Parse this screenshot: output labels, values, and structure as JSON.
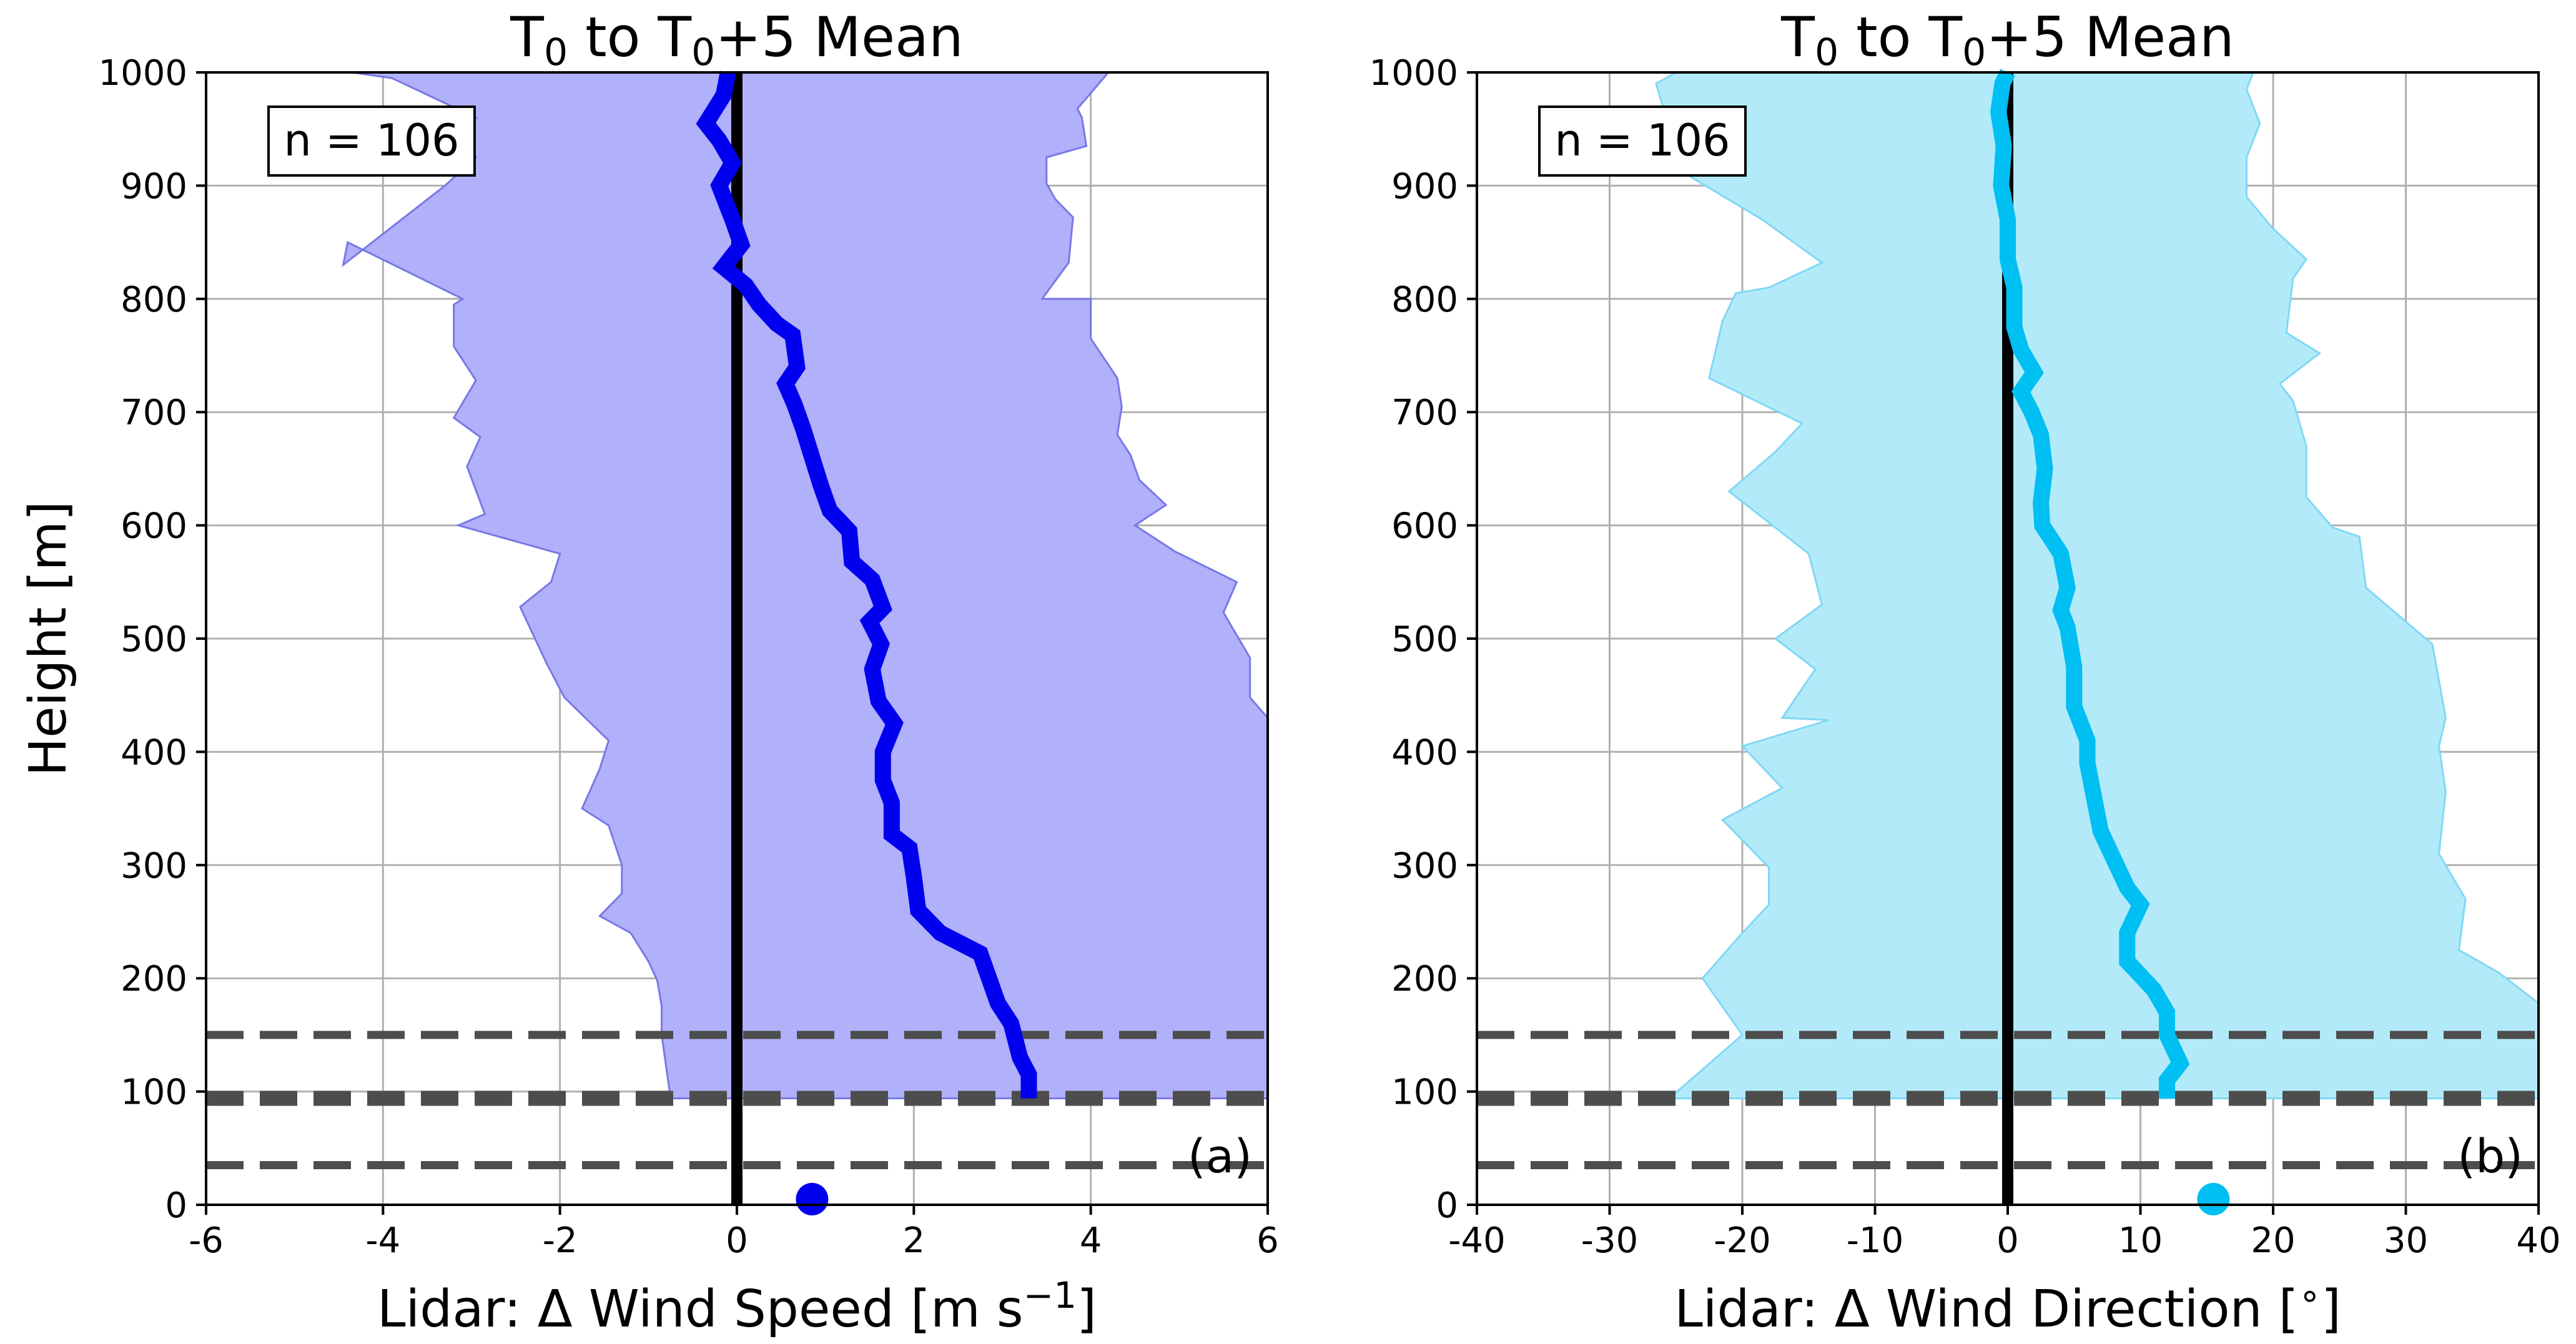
{
  "chart_data": [
    {
      "type": "line",
      "title": "T0 to T0+5 Mean",
      "title_parts": {
        "a": "T",
        "b": "0",
        "c": " to T",
        "d": "0",
        "e": "+5 Mean"
      },
      "xlabel": "Lidar: Δ Wind Speed [m s",
      "xlabel_sup": "−1",
      "xlabel_end": "]",
      "ylabel": "Height [m]",
      "xlim": [
        -6,
        6
      ],
      "ylim": [
        0,
        1000
      ],
      "xticks": [
        -6,
        -4,
        -2,
        0,
        2,
        4,
        6
      ],
      "xtick_labels": [
        "-6",
        "-4",
        "-2",
        "0",
        "2",
        "4",
        "6"
      ],
      "yticks": [
        0,
        100,
        200,
        300,
        400,
        500,
        600,
        700,
        800,
        900,
        1000
      ],
      "ytick_labels": [
        "0",
        "100",
        "200",
        "300",
        "400",
        "500",
        "600",
        "700",
        "800",
        "900",
        "1000"
      ],
      "grid": true,
      "annotation": "n = 106",
      "panel_label": "(a)",
      "colors": {
        "mean": "#0000ee",
        "band": "#b0b0fb",
        "band_edge": "#7878e6",
        "zero": "#000000",
        "dashed": "#4d4d4d"
      },
      "series": [
        {
          "role": "mean",
          "points": [
            [
              3.3,
              94
            ],
            [
              3.3,
              115
            ],
            [
              3.2,
              130
            ],
            [
              3.1,
              160
            ],
            [
              2.95,
              178
            ],
            [
              2.85,
              200
            ],
            [
              2.75,
              222
            ],
            [
              2.3,
              240
            ],
            [
              2.05,
              260
            ],
            [
              2.0,
              290
            ],
            [
              1.95,
              315
            ],
            [
              1.75,
              327
            ],
            [
              1.75,
              355
            ],
            [
              1.65,
              375
            ],
            [
              1.65,
              400
            ],
            [
              1.78,
              425
            ],
            [
              1.6,
              445
            ],
            [
              1.53,
              473
            ],
            [
              1.63,
              495
            ],
            [
              1.5,
              515
            ],
            [
              1.65,
              527
            ],
            [
              1.53,
              552
            ],
            [
              1.3,
              568
            ],
            [
              1.27,
              595
            ],
            [
              1.05,
              613
            ],
            [
              0.95,
              635
            ],
            [
              0.85,
              660
            ],
            [
              0.75,
              685
            ],
            [
              0.65,
              707
            ],
            [
              0.55,
              725
            ],
            [
              0.68,
              740
            ],
            [
              0.63,
              768
            ],
            [
              0.45,
              778
            ],
            [
              0.25,
              795
            ],
            [
              0.1,
              812
            ],
            [
              -0.15,
              828
            ],
            [
              0.05,
              848
            ],
            [
              -0.05,
              870
            ],
            [
              -0.2,
              900
            ],
            [
              -0.05,
              920
            ],
            [
              -0.2,
              940
            ],
            [
              -0.35,
              955
            ],
            [
              -0.15,
              980
            ],
            [
              -0.1,
              1000
            ]
          ]
        },
        {
          "role": "lower_bound",
          "points": [
            [
              -0.75,
              94
            ],
            [
              -0.85,
              150
            ],
            [
              -0.85,
              175
            ],
            [
              -0.9,
              198
            ],
            [
              -1.0,
              215
            ],
            [
              -1.2,
              240
            ],
            [
              -1.55,
              255
            ],
            [
              -1.3,
              275
            ],
            [
              -1.3,
              300
            ],
            [
              -1.45,
              335
            ],
            [
              -1.75,
              350
            ],
            [
              -1.55,
              385
            ],
            [
              -1.45,
              410
            ],
            [
              -1.95,
              448
            ],
            [
              -2.15,
              478
            ],
            [
              -2.45,
              528
            ],
            [
              -2.1,
              550
            ],
            [
              -2.0,
              575
            ],
            [
              -3.15,
              600
            ],
            [
              -2.85,
              610
            ],
            [
              -3.05,
              652
            ],
            [
              -2.9,
              678
            ],
            [
              -3.2,
              695
            ],
            [
              -2.95,
              728
            ],
            [
              -3.2,
              758
            ],
            [
              -3.2,
              795
            ],
            [
              -3.1,
              800
            ],
            [
              -4.4,
              850
            ],
            [
              -4.45,
              830
            ],
            [
              -3.3,
              900
            ],
            [
              -2.95,
              925
            ],
            [
              -3.2,
              955
            ],
            [
              -2.95,
              960
            ],
            [
              -3.9,
              995
            ],
            [
              -4.35,
              1000
            ]
          ]
        },
        {
          "role": "upper_bound",
          "points": [
            [
              6,
              94
            ],
            [
              6,
              430
            ],
            [
              5.8,
              448
            ],
            [
              5.8,
              483
            ],
            [
              5.5,
              523
            ],
            [
              5.65,
              550
            ],
            [
              4.95,
              577
            ],
            [
              4.5,
              600
            ],
            [
              4.85,
              618
            ],
            [
              4.55,
              640
            ],
            [
              4.45,
              662
            ],
            [
              4.3,
              680
            ],
            [
              4.35,
              705
            ],
            [
              4.3,
              730
            ],
            [
              4.0,
              765
            ],
            [
              4.0,
              800
            ],
            [
              3.45,
              800
            ],
            [
              3.75,
              832
            ],
            [
              3.8,
              872
            ],
            [
              3.6,
              888
            ],
            [
              3.5,
              902
            ],
            [
              3.5,
              925
            ],
            [
              3.95,
              935
            ],
            [
              3.9,
              960
            ],
            [
              3.85,
              968
            ],
            [
              4.2,
              1000
            ]
          ]
        }
      ],
      "vline_x": 0,
      "dashed_hlines": [
        150,
        94,
        35
      ],
      "marker": {
        "x": 0.85,
        "y": 5
      }
    },
    {
      "type": "line",
      "title": "T0 to T0+5 Mean",
      "title_parts": {
        "a": "T",
        "b": "0",
        "c": " to T",
        "d": "0",
        "e": "+5 Mean"
      },
      "xlabel": "Lidar: Δ Wind Direction [",
      "xlabel_sup": "∘",
      "xlabel_end": "]",
      "ylabel": "",
      "xlim": [
        -40,
        40
      ],
      "ylim": [
        0,
        1000
      ],
      "xticks": [
        -40,
        -30,
        -20,
        -10,
        0,
        10,
        20,
        30,
        40
      ],
      "xtick_labels": [
        "-40",
        "-30",
        "-20",
        "-10",
        "0",
        "10",
        "20",
        "30",
        "40"
      ],
      "yticks": [
        0,
        100,
        200,
        300,
        400,
        500,
        600,
        700,
        800,
        900,
        1000
      ],
      "ytick_labels": [
        "0",
        "100",
        "200",
        "300",
        "400",
        "500",
        "600",
        "700",
        "800",
        "900",
        "1000"
      ],
      "grid": true,
      "annotation": "n = 106",
      "panel_label": "(b)",
      "colors": {
        "mean": "#00bff3",
        "band": "#b3eafa",
        "band_edge": "#7fd8f5",
        "zero": "#000000",
        "dashed": "#4d4d4d"
      },
      "series": [
        {
          "role": "mean",
          "points": [
            [
              12,
              94
            ],
            [
              12,
              110
            ],
            [
              13,
              125
            ],
            [
              12,
              150
            ],
            [
              12,
              170
            ],
            [
              11,
              190
            ],
            [
              9,
              215
            ],
            [
              9,
              240
            ],
            [
              10,
              265
            ],
            [
              9,
              280
            ],
            [
              8,
              305
            ],
            [
              7,
              330
            ],
            [
              6.5,
              360
            ],
            [
              6,
              390
            ],
            [
              6,
              410
            ],
            [
              5,
              440
            ],
            [
              5,
              475
            ],
            [
              4.5,
              510
            ],
            [
              4,
              525
            ],
            [
              4.5,
              545
            ],
            [
              4,
              575
            ],
            [
              2.6,
              600
            ],
            [
              2.5,
              620
            ],
            [
              2.8,
              650
            ],
            [
              2.5,
              680
            ],
            [
              1.8,
              700
            ],
            [
              1,
              718
            ],
            [
              2,
              735
            ],
            [
              1,
              755
            ],
            [
              0.5,
              775
            ],
            [
              0.5,
              810
            ],
            [
              0,
              835
            ],
            [
              0,
              870
            ],
            [
              -0.5,
              900
            ],
            [
              -0.3,
              935
            ],
            [
              -0.7,
              965
            ],
            [
              -0.4,
              990
            ],
            [
              0,
              1000
            ]
          ]
        },
        {
          "role": "lower_bound",
          "points": [
            [
              -25.5,
              94
            ],
            [
              -20,
              150
            ],
            [
              -23,
              200
            ],
            [
              -20,
              240
            ],
            [
              -18,
              265
            ],
            [
              -18,
              298
            ],
            [
              -21.5,
              340
            ],
            [
              -17,
              368
            ],
            [
              -20,
              405
            ],
            [
              -13.5,
              428
            ],
            [
              -17,
              430
            ],
            [
              -14.5,
              473
            ],
            [
              -17.5,
              500
            ],
            [
              -14,
              530
            ],
            [
              -15,
              575
            ],
            [
              -21,
              630
            ],
            [
              -17.5,
              665
            ],
            [
              -15.5,
              690
            ],
            [
              -22.5,
              730
            ],
            [
              -21.5,
              780
            ],
            [
              -20.5,
              805
            ],
            [
              -18,
              810
            ],
            [
              -14,
              832
            ],
            [
              -18.5,
              870
            ],
            [
              -24.5,
              912
            ],
            [
              -26.5,
              990
            ],
            [
              -25,
              1000
            ]
          ]
        },
        {
          "role": "upper_bound",
          "points": [
            [
              40,
              94
            ],
            [
              40,
              178
            ],
            [
              37,
              205
            ],
            [
              34,
              225
            ],
            [
              34.5,
              270
            ],
            [
              32.5,
              310
            ],
            [
              33,
              365
            ],
            [
              32.5,
              405
            ],
            [
              33,
              430
            ],
            [
              32,
              495
            ],
            [
              30,
              515
            ],
            [
              27,
              545
            ],
            [
              26.5,
              590
            ],
            [
              24.5,
              598
            ],
            [
              22.5,
              625
            ],
            [
              22.5,
              645
            ],
            [
              22.5,
              670
            ],
            [
              21.5,
              710
            ],
            [
              20.5,
              725
            ],
            [
              23.5,
              752
            ],
            [
              21,
              770
            ],
            [
              21.5,
              818
            ],
            [
              22.5,
              835
            ],
            [
              20,
              862
            ],
            [
              18,
              890
            ],
            [
              18,
              925
            ],
            [
              19,
              955
            ],
            [
              18,
              985
            ],
            [
              18.5,
              1000
            ]
          ]
        }
      ],
      "vline_x": 0,
      "dashed_hlines": [
        150,
        94,
        35
      ],
      "marker": {
        "x": 15.5,
        "y": 5
      }
    }
  ]
}
